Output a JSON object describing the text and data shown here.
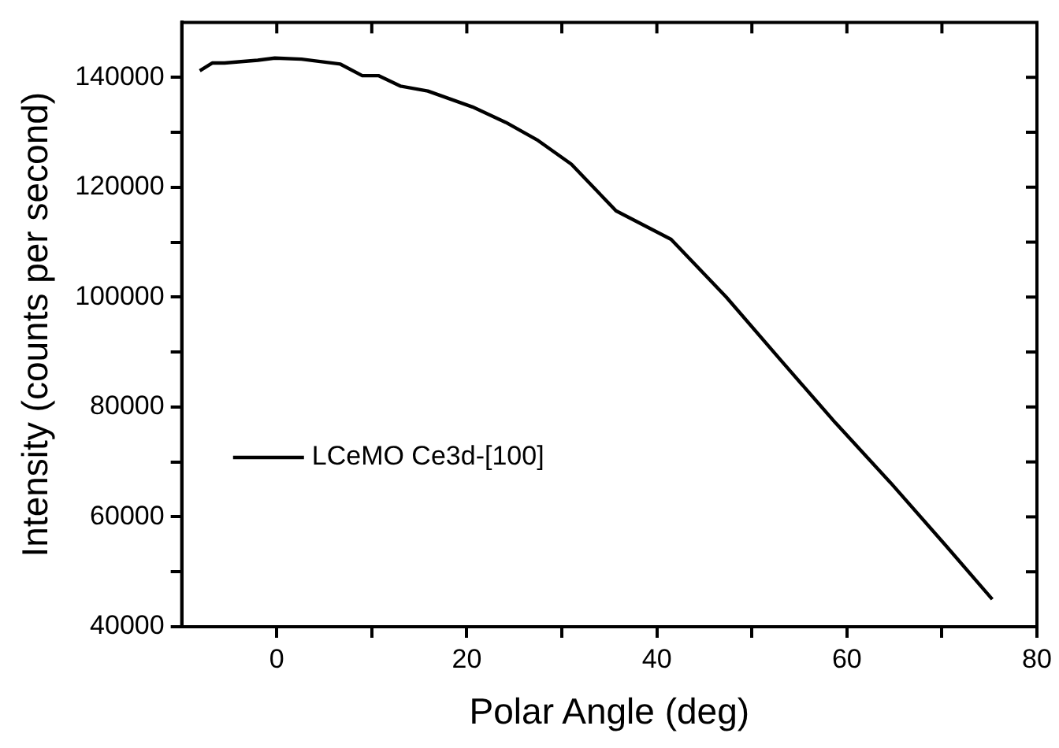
{
  "chart_data": {
    "type": "line",
    "xlabel": "Polar Angle (deg)",
    "ylabel": "Intensity (counts per second)",
    "xlim": [
      -10,
      80
    ],
    "ylim": [
      40000,
      150000
    ],
    "xticks": [
      0,
      {
        "value": 10,
        "label": null
      },
      20,
      {
        "value": 30,
        "label": null
      },
      40,
      {
        "value": 50,
        "label": null
      },
      60,
      {
        "value": 70,
        "label": null
      },
      80
    ],
    "yticks": [
      40000,
      {
        "value": 50000,
        "label": null
      },
      60000,
      {
        "value": 70000,
        "label": null
      },
      80000,
      {
        "value": 90000,
        "label": null
      },
      100000,
      {
        "value": 110000,
        "label": null
      },
      120000,
      {
        "value": 130000,
        "label": null
      },
      140000
    ],
    "grid": false,
    "legend": "bottom left",
    "marker": "none",
    "line_style": "solid",
    "series": [
      {
        "name": "LCeMO Ce3d-[100]",
        "color": "#000000",
        "x": [
          -8.1,
          -6.8,
          -5.5,
          -2.0,
          -0.2,
          2.6,
          6.7,
          9.0,
          10.7,
          13.0,
          15.9,
          20.6,
          24.1,
          27.5,
          31.0,
          35.7,
          41.5,
          47.3,
          53.0,
          58.8,
          64.6,
          70.4,
          75.3
        ],
        "values": [
          141200,
          142600,
          142600,
          143100,
          143500,
          143300,
          142400,
          140300,
          140300,
          138400,
          137500,
          134600,
          131800,
          128500,
          124200,
          115700,
          110500,
          100000,
          88600,
          77100,
          66200,
          54800,
          45000
        ]
      }
    ]
  }
}
